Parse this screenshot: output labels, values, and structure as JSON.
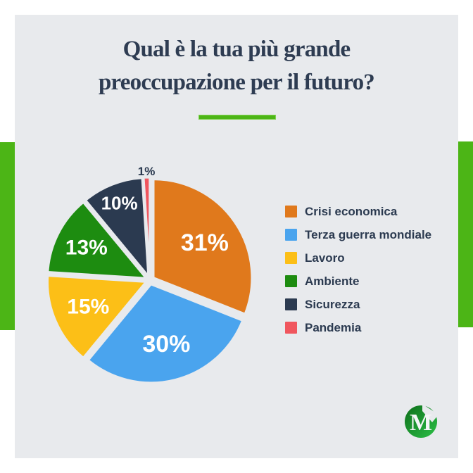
{
  "title": {
    "line1": "Qual è la tua più grande",
    "line2": "preoccupazione per il futuro?"
  },
  "colors": {
    "accent_green": "#4cb516",
    "card_bg": "#e8eaed",
    "page_bg": "#ffffff",
    "title_text": "#2e3c52",
    "legend_text": "#2b3a50"
  },
  "chart_data": {
    "type": "pie",
    "title": "Qual è la tua più grande preoccupazione per il futuro?",
    "labels": [
      "Crisi economica",
      "Terza guerra mondiale",
      "Lavoro",
      "Ambiente",
      "Sicurezza",
      "Pandemia"
    ],
    "values": [
      31,
      30,
      15,
      13,
      10,
      1
    ],
    "value_labels": [
      "31%",
      "30%",
      "15%",
      "13%",
      "10%",
      "1%"
    ],
    "colors": [
      "#e0791c",
      "#4aa4ee",
      "#fcbf17",
      "#1d8c10",
      "#2b3a50",
      "#f0565e"
    ],
    "start_angle_deg": 0,
    "direction": "clockwise",
    "exploded": true,
    "legend_position": "right",
    "slice_label_color": "#ffffff",
    "outside_label_color": "#2b3a50"
  },
  "logo": {
    "letter": "M"
  }
}
